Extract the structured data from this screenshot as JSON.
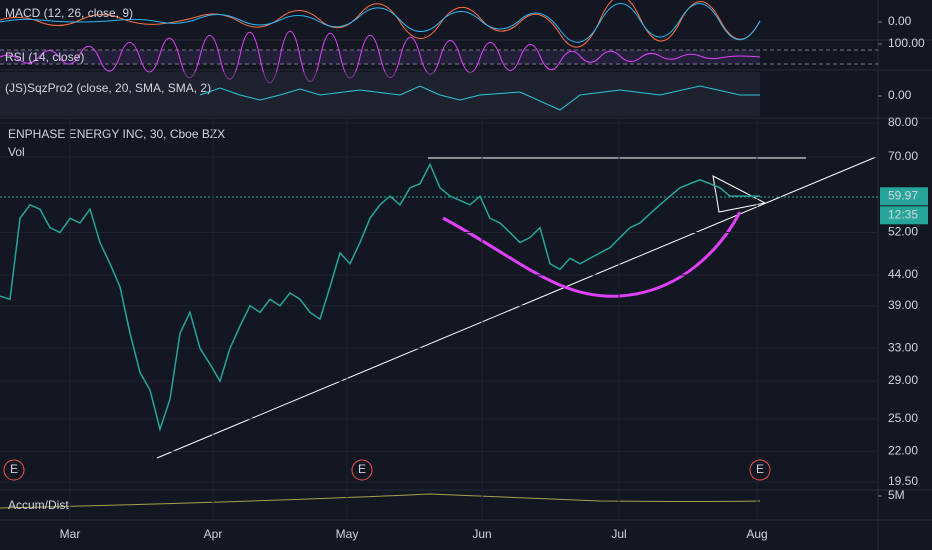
{
  "chart_data": {
    "type": "line",
    "title": "ENPHASE ENERGY INC, 30, Cboe BZX",
    "subtitle": "Vol",
    "log_scale": true,
    "grid": true,
    "ylim": [
      19.5,
      80
    ],
    "yticks": [
      {
        "value": 80,
        "label": "80.00"
      },
      {
        "value": 70,
        "label": "70.00"
      },
      {
        "value": 52,
        "label": "52.00"
      },
      {
        "value": 44,
        "label": "44.00"
      },
      {
        "value": 39,
        "label": "39.00"
      },
      {
        "value": 33,
        "label": "33.00"
      },
      {
        "value": 29,
        "label": "29.00"
      },
      {
        "value": 25,
        "label": "25.00"
      },
      {
        "value": 22,
        "label": "22.00"
      },
      {
        "value": 19.5,
        "label": "19.50"
      }
    ],
    "xlim": [
      0,
      87.8
    ],
    "xticks": [
      {
        "value": 7,
        "label": "Mar"
      },
      {
        "value": 21.3,
        "label": "Apr"
      },
      {
        "value": 34.7,
        "label": "May"
      },
      {
        "value": 48.2,
        "label": "Jun"
      },
      {
        "value": 61.9,
        "label": "Jul"
      },
      {
        "value": 75.7,
        "label": "Aug"
      }
    ],
    "series": [
      {
        "color": "#26a69a",
        "values": [
          40.5,
          40,
          55,
          58,
          57,
          53,
          52,
          55,
          54,
          57,
          50,
          46,
          42,
          35,
          30,
          28,
          24,
          27,
          35,
          38,
          33,
          31,
          29,
          33,
          36,
          39,
          38,
          40,
          39,
          41,
          40,
          38,
          37,
          42,
          48,
          46,
          50,
          55,
          58,
          60,
          58,
          62,
          63,
          68,
          62,
          60,
          59,
          58,
          60,
          55,
          54,
          52,
          50,
          51,
          53,
          46,
          45,
          47,
          46,
          47,
          48,
          49,
          51,
          53,
          54,
          56,
          58,
          60,
          62,
          63,
          64,
          63,
          62,
          60,
          60,
          60,
          60
        ]
      }
    ],
    "last_value": 59.97,
    "countdown": "12:35",
    "earnings_markers": [
      "E",
      "E",
      "E"
    ],
    "panels": [
      {
        "name": "MACD (12, 26, close, 9)",
        "yticks": [
          {
            "value": 0,
            "label": "0.00"
          }
        ]
      },
      {
        "name": "RSI (14, close)",
        "yticks": [
          {
            "value": 100,
            "label": "100.00"
          }
        ]
      },
      {
        "name": "(JS)SqzPro2 (close, 20, SMA, SMA, 2)",
        "yticks": [
          {
            "value": 0,
            "label": "0.00"
          }
        ]
      },
      {
        "name": "Accum/Dist",
        "yticks": [
          {
            "value": 5000000,
            "label": "5M"
          }
        ]
      }
    ]
  }
}
